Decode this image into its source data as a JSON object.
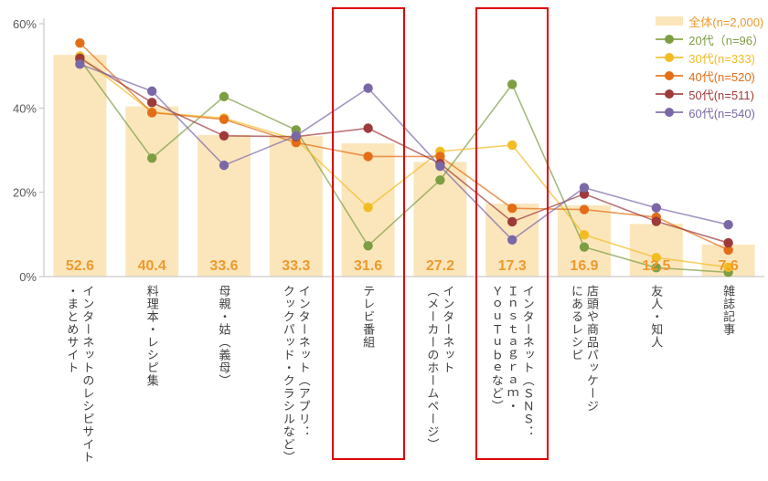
{
  "chart_data": {
    "type": "bar+line",
    "title": "",
    "xlabel": "",
    "ylabel": "",
    "ylim": [
      0,
      60
    ],
    "grid": false,
    "legend_position": "top-right",
    "yticks": [
      {
        "value": 0,
        "label": "0%"
      },
      {
        "value": 20,
        "label": "20%"
      },
      {
        "value": 40,
        "label": "40%"
      },
      {
        "value": 60,
        "label": "60%"
      }
    ],
    "categories": [
      "インターネットのレシピサイト\n・まとめサイト",
      "料理本・レシピ集",
      "母親・姑（義母）",
      "インターネット（アプリ：\nクックパッド・クラシルなど）",
      "テレビ番組",
      "インターネット\n（メーカーのホームページ）",
      "インターネット（ＳＮＳ：\nＩｎｓｔａｇｒａｍ・\nＹｏｕＴｕｂｅなど）",
      "店頭や商品パッケージ\nにあるレシピ",
      "友人・知人",
      "雑誌記事"
    ],
    "bar_series": {
      "name": "全体(n=2,000)",
      "values": [
        52.6,
        40.4,
        33.6,
        33.3,
        31.6,
        27.2,
        17.3,
        16.9,
        12.5,
        7.6
      ],
      "color": "#FBE6BC",
      "value_label_color": "#EE9A2B"
    },
    "line_series": [
      {
        "name": "20代（n=96）",
        "color": "#7E9E44",
        "values": [
          51.5,
          28.1,
          42.7,
          34.8,
          7.3,
          22.9,
          45.6,
          7.0,
          2.1,
          1.0
        ]
      },
      {
        "name": "30代(n=333)",
        "color": "#F2BC24",
        "values": [
          52.3,
          39.0,
          37.6,
          32.5,
          16.4,
          29.7,
          31.2,
          9.9,
          4.5,
          2.2
        ]
      },
      {
        "name": "40代(n=520)",
        "color": "#E36E17",
        "values": [
          55.4,
          38.9,
          37.3,
          31.8,
          28.5,
          28.5,
          16.2,
          15.9,
          14.1,
          6.3
        ]
      },
      {
        "name": "50代(n=511)",
        "color": "#9E3A3A",
        "values": [
          51.8,
          41.3,
          33.4,
          33.2,
          35.2,
          26.8,
          13.0,
          19.6,
          13.1,
          8.0
        ]
      },
      {
        "name": "60代(n=540)",
        "color": "#7A68A6",
        "values": [
          50.4,
          44.0,
          26.4,
          33.4,
          44.7,
          26.2,
          8.7,
          21.1,
          16.3,
          12.3
        ]
      }
    ],
    "highlighted_category_indices": [
      4,
      6
    ],
    "highlight_color": "#E00000"
  },
  "styles": {
    "background": "#FFFFFF",
    "axis_color": "#BFBFBF",
    "tick_label_color": "#595959",
    "category_label_color": "#404040"
  }
}
